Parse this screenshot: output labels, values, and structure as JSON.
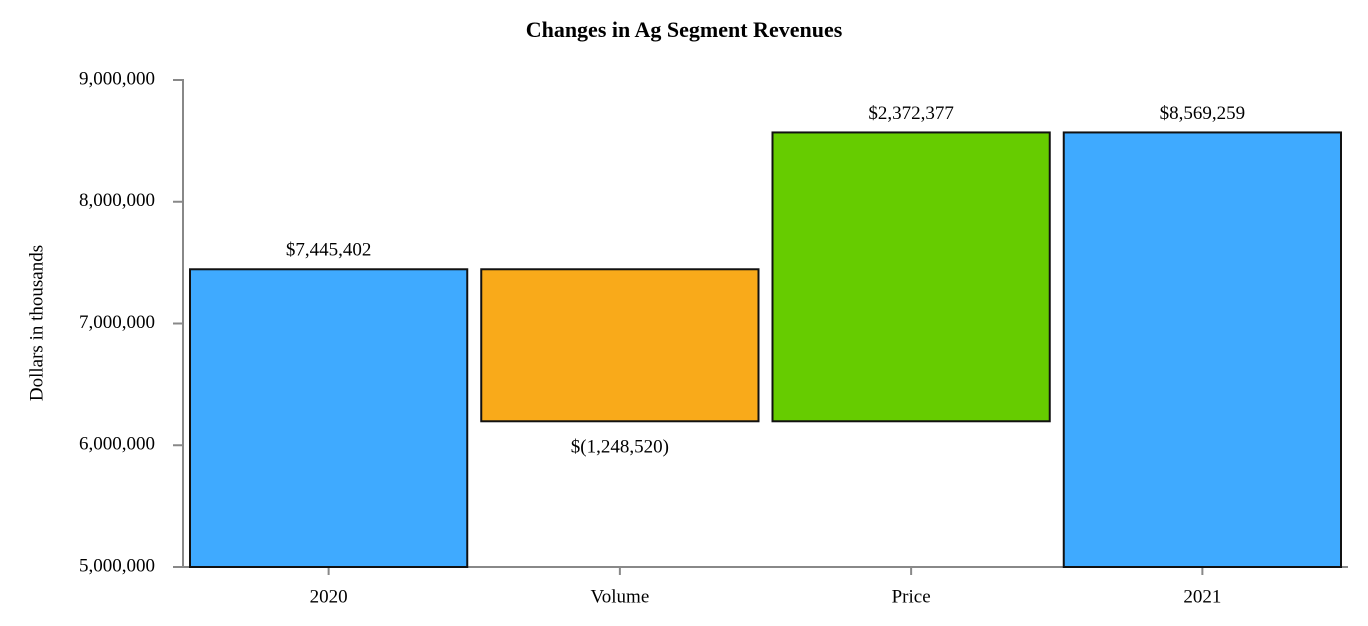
{
  "chart_data": {
    "type": "waterfall",
    "title": "Changes in Ag Segment Revenues",
    "y_label": "Dollars in thousands",
    "categories": [
      "2020",
      "Volume",
      "Price",
      "2021"
    ],
    "values": [
      7445402,
      -1248520,
      2372377,
      8569259
    ],
    "value_labels": [
      "$7,445,402",
      "$(1,248,520)",
      "$2,372,377",
      "$8,569,259"
    ],
    "measure": [
      "absolute",
      "relative",
      "relative",
      "total"
    ],
    "colors": [
      "#3faaff",
      "#f9aa1a",
      "#66cc00",
      "#3faaff"
    ],
    "ylim": [
      5000000,
      9000000
    ],
    "yticks": [
      {
        "value": 5000000,
        "label": "5,000,000"
      },
      {
        "value": 6000000,
        "label": "6,000,000"
      },
      {
        "value": 7000000,
        "label": "7,000,000"
      },
      {
        "value": 8000000,
        "label": "8,000,000"
      },
      {
        "value": 9000000,
        "label": "9,000,000"
      }
    ],
    "grid": false
  }
}
